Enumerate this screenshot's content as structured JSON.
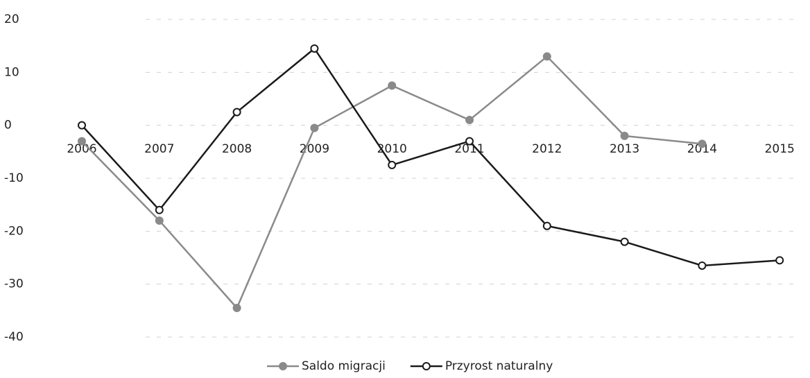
{
  "chart_data": {
    "type": "line",
    "categories": [
      "2006",
      "2007",
      "2008",
      "2009",
      "2010",
      "2011",
      "2012",
      "2013",
      "2014",
      "2015"
    ],
    "series": [
      {
        "name": "Saldo migracji",
        "color": "#8a8a8a",
        "values": [
          -3,
          -18,
          -34.5,
          -0.5,
          7.5,
          1,
          13,
          -2,
          -3.5,
          null
        ]
      },
      {
        "name": "Przyrost naturalny",
        "color": "#1a1a1a",
        "values": [
          0,
          -16,
          2.5,
          14.5,
          -7.5,
          -3,
          -19,
          -22,
          -26.5,
          -25.5
        ]
      }
    ],
    "ylim": [
      -40,
      20
    ],
    "yticks": [
      20,
      10,
      0,
      -10,
      -20,
      -30,
      -40
    ],
    "grid": true,
    "legend": "bottom"
  }
}
